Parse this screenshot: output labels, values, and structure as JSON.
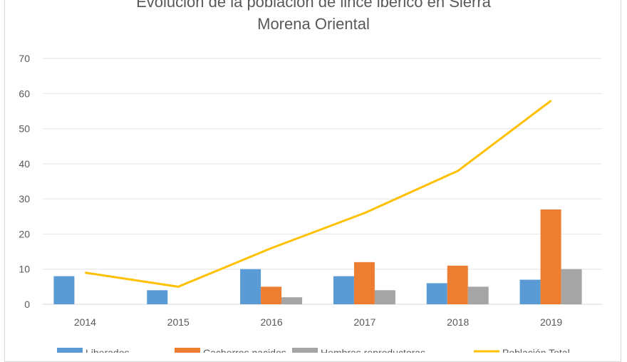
{
  "chart_data": {
    "type": "bar",
    "title_lines": [
      "Evolución de la población de lince ibérico en Sierra",
      "Morena Oriental"
    ],
    "categories": [
      "2014",
      "2015",
      "2016",
      "2017",
      "2018",
      "2019"
    ],
    "series": [
      {
        "name": "Liberados",
        "kind": "bar",
        "color": "#5b9bd5",
        "values": [
          8,
          4,
          10,
          8,
          6,
          7
        ]
      },
      {
        "name": "Cachorros nacidos",
        "kind": "bar",
        "color": "#ed7d31",
        "values": [
          0,
          0,
          5,
          12,
          11,
          27
        ]
      },
      {
        "name": "Hembras reproductoras",
        "kind": "bar",
        "color": "#a5a5a5",
        "values": [
          0,
          0,
          2,
          4,
          5,
          10
        ]
      },
      {
        "name": "Población Total",
        "kind": "line",
        "color": "#ffc000",
        "values": [
          9,
          5,
          16,
          26,
          38,
          58
        ]
      }
    ],
    "yticks": [
      0,
      10,
      20,
      30,
      40,
      50,
      60,
      70
    ],
    "ylim": [
      0,
      70
    ],
    "grid": true,
    "legend": "bottom",
    "xlabel": "",
    "ylabel": ""
  }
}
